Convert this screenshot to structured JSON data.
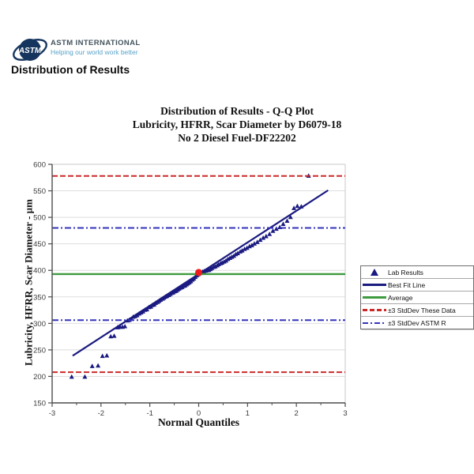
{
  "header": {
    "logo_text": "ASTM",
    "brand_name": "ASTM INTERNATIONAL",
    "brand_tagline": "Helping our world work better",
    "page_title": "Distribution of Results"
  },
  "chart": {
    "title_line1": "Distribution of Results - Q-Q Plot",
    "title_line2": "Lubricity, HFRR, Scar Diameter by D6079-18",
    "title_line3": "No 2 Diesel Fuel-DF22202",
    "x_label": "Normal Quantiles",
    "y_label": "Lubricity, HFRR, Scar Diameter - µm"
  },
  "legend": {
    "items": [
      {
        "label": "Lab Results",
        "swatch": "triangle",
        "color": "#1a1a80"
      },
      {
        "label": "Best Fit Line",
        "swatch": "solid",
        "color": "#1a1a80"
      },
      {
        "label": "Average",
        "swatch": "solid",
        "color": "#3f9b3f"
      },
      {
        "label": "±3 StdDev These Data",
        "swatch": "dashed",
        "color": "#cc2929"
      },
      {
        "label": "±3 StdDev ASTM R",
        "swatch": "dashdot",
        "color": "#3333bb"
      }
    ]
  },
  "colors": {
    "points": "#1a1a80",
    "best_fit": "#1a1a80",
    "average": "#3f9b3f",
    "stddev_these_data": "#cc2929",
    "stddev_astm_r": "#3333bb",
    "average_point": "#ee1c1c",
    "grid": "#dedede",
    "axis": "#4d4d4d",
    "frame": "#c9c9c9",
    "tick_text": "#3c3c3c",
    "logo_navy": "#16355e"
  },
  "chart_data": {
    "type": "scatter",
    "title": "Distribution of Results - Q-Q Plot / Lubricity, HFRR, Scar Diameter by D6079-18 / No 2 Diesel Fuel-DF22202",
    "xlabel": "Normal Quantiles",
    "ylabel": "Lubricity, HFRR, Scar Diameter - µm",
    "xlim": [
      -3,
      3
    ],
    "ylim": [
      150,
      600
    ],
    "x_ticks": [
      -3,
      -2,
      -1,
      0,
      1,
      2,
      3
    ],
    "x_minor_step": 0.5,
    "y_ticks": [
      150,
      200,
      250,
      300,
      350,
      400,
      450,
      500,
      550,
      600
    ],
    "grid": "horizontal",
    "legend_position": "right",
    "series": [
      {
        "name": "Lab Results",
        "type": "scatter",
        "marker": "triangle",
        "color": "#1a1a80",
        "points": [
          [
            -2.6,
            199
          ],
          [
            -2.33,
            199
          ],
          [
            -2.18,
            219
          ],
          [
            -2.06,
            220
          ],
          [
            -1.97,
            238
          ],
          [
            -1.88,
            239
          ],
          [
            -1.8,
            275
          ],
          [
            -1.73,
            276
          ],
          [
            -1.66,
            292
          ],
          [
            -1.61,
            293
          ],
          [
            -1.56,
            293
          ],
          [
            -1.51,
            294
          ],
          [
            -1.46,
            305
          ],
          [
            -1.42,
            306
          ],
          [
            -1.38,
            308
          ],
          [
            -1.34,
            312
          ],
          [
            -1.3,
            313
          ],
          [
            -1.26,
            315
          ],
          [
            -1.22,
            318
          ],
          [
            -1.18,
            320
          ],
          [
            -1.14,
            322
          ],
          [
            -1.1,
            325
          ],
          [
            -1.06,
            326
          ],
          [
            -1.02,
            330
          ],
          [
            -0.98,
            331
          ],
          [
            -0.95,
            334
          ],
          [
            -0.91,
            335
          ],
          [
            -0.88,
            338
          ],
          [
            -0.84,
            340
          ],
          [
            -0.81,
            342
          ],
          [
            -0.78,
            344
          ],
          [
            -0.74,
            346
          ],
          [
            -0.71,
            348
          ],
          [
            -0.68,
            350
          ],
          [
            -0.65,
            351
          ],
          [
            -0.61,
            353
          ],
          [
            -0.58,
            355
          ],
          [
            -0.55,
            357
          ],
          [
            -0.52,
            358
          ],
          [
            -0.49,
            360
          ],
          [
            -0.46,
            361
          ],
          [
            -0.43,
            363
          ],
          [
            -0.4,
            365
          ],
          [
            -0.37,
            367
          ],
          [
            -0.34,
            368
          ],
          [
            -0.31,
            370
          ],
          [
            -0.28,
            371
          ],
          [
            -0.25,
            373
          ],
          [
            -0.22,
            375
          ],
          [
            -0.19,
            377
          ],
          [
            -0.16,
            379
          ],
          [
            -0.13,
            382
          ],
          [
            -0.1,
            384
          ],
          [
            -0.07,
            387
          ],
          [
            -0.04,
            390
          ],
          [
            -0.01,
            392
          ],
          [
            0.02,
            394
          ],
          [
            0.05,
            396
          ],
          [
            0.08,
            397
          ],
          [
            0.11,
            398
          ],
          [
            0.15,
            399
          ],
          [
            0.18,
            400
          ],
          [
            0.21,
            400
          ],
          [
            0.24,
            402
          ],
          [
            0.27,
            404
          ],
          [
            0.31,
            406
          ],
          [
            0.34,
            407
          ],
          [
            0.38,
            409
          ],
          [
            0.41,
            411
          ],
          [
            0.45,
            413
          ],
          [
            0.48,
            414
          ],
          [
            0.52,
            416
          ],
          [
            0.56,
            418
          ],
          [
            0.6,
            421
          ],
          [
            0.64,
            423
          ],
          [
            0.68,
            425
          ],
          [
            0.72,
            427
          ],
          [
            0.76,
            430
          ],
          [
            0.8,
            432
          ],
          [
            0.85,
            435
          ],
          [
            0.89,
            437
          ],
          [
            0.94,
            440
          ],
          [
            0.99,
            442
          ],
          [
            1.04,
            445
          ],
          [
            1.09,
            447
          ],
          [
            1.14,
            450
          ],
          [
            1.2,
            453
          ],
          [
            1.26,
            457
          ],
          [
            1.32,
            461
          ],
          [
            1.38,
            464
          ],
          [
            1.45,
            468
          ],
          [
            1.52,
            474
          ],
          [
            1.59,
            478
          ],
          [
            1.66,
            481
          ],
          [
            1.73,
            487
          ],
          [
            1.81,
            493
          ],
          [
            1.88,
            500
          ],
          [
            1.95,
            517
          ],
          [
            2.02,
            521
          ],
          [
            2.1,
            520
          ],
          [
            2.25,
            578
          ]
        ]
      },
      {
        "name": "Best Fit Line",
        "type": "line",
        "color": "#1a1a80",
        "points": [
          [
            -2.58,
            239
          ],
          [
            2.65,
            551
          ]
        ]
      },
      {
        "name": "Average",
        "type": "hline",
        "style": "solid",
        "color": "#3f9b3f",
        "y": [
          393
        ]
      },
      {
        "name": "±3 StdDev These Data",
        "type": "hline",
        "style": "dashed",
        "color": "#cc2929",
        "y": [
          578,
          208
        ]
      },
      {
        "name": "±3 StdDev ASTM R",
        "type": "hline",
        "style": "dashdot",
        "color": "#3333bb",
        "y": [
          480,
          306
        ]
      },
      {
        "name": "Average Point",
        "type": "point",
        "marker": "circle",
        "color": "#ee1c1c",
        "point": [
          0,
          396
        ]
      }
    ]
  }
}
